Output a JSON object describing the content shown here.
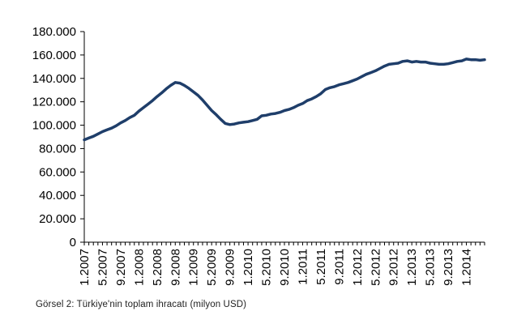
{
  "chart_data": {
    "type": "line",
    "title": "",
    "xlabel": "",
    "ylabel": "",
    "ylim": [
      0,
      180000
    ],
    "grid": false,
    "line_color": "#1f3e6a",
    "y_ticks": [
      "0",
      "20.000",
      "40.000",
      "60.000",
      "80.000",
      "100.000",
      "120.000",
      "140.000",
      "160.000",
      "180.000"
    ],
    "x_tick_labels": [
      "1.2007",
      "5.2007",
      "9.2007",
      "1.2008",
      "5.2008",
      "9.2008",
      "1.2009",
      "5.2009",
      "9.2009",
      "1.2010",
      "5.2010",
      "9.2010",
      "1.2011",
      "5.2011",
      "9.2011",
      "1.2012",
      "5.2012",
      "9.2012",
      "1.2013",
      "5.2013",
      "9.2013",
      "1.2014"
    ],
    "x": [
      "1.2007",
      "2.2007",
      "3.2007",
      "4.2007",
      "5.2007",
      "6.2007",
      "7.2007",
      "8.2007",
      "9.2007",
      "10.2007",
      "11.2007",
      "12.2007",
      "1.2008",
      "2.2008",
      "3.2008",
      "4.2008",
      "5.2008",
      "6.2008",
      "7.2008",
      "8.2008",
      "9.2008",
      "10.2008",
      "11.2008",
      "12.2008",
      "1.2009",
      "2.2009",
      "3.2009",
      "4.2009",
      "5.2009",
      "6.2009",
      "7.2009",
      "8.2009",
      "9.2009",
      "10.2009",
      "11.2009",
      "12.2009",
      "1.2010",
      "2.2010",
      "3.2010",
      "4.2010",
      "5.2010",
      "6.2010",
      "7.2010",
      "8.2010",
      "9.2010",
      "10.2010",
      "11.2010",
      "12.2010",
      "1.2011",
      "2.2011",
      "3.2011",
      "4.2011",
      "5.2011",
      "6.2011",
      "7.2011",
      "8.2011",
      "9.2011",
      "10.2011",
      "11.2011",
      "12.2011",
      "1.2012",
      "2.2012",
      "3.2012",
      "4.2012",
      "5.2012",
      "6.2012",
      "7.2012",
      "8.2012",
      "9.2012",
      "10.2012",
      "11.2012",
      "12.2012",
      "1.2013",
      "2.2013",
      "3.2013",
      "4.2013",
      "5.2013",
      "6.2013",
      "7.2013",
      "8.2013",
      "9.2013",
      "10.2013",
      "11.2013",
      "12.2013",
      "1.2014",
      "2.2014",
      "3.2014",
      "4.2014",
      "5.2014"
    ],
    "series": [
      {
        "name": "",
        "values": [
          87500,
          89000,
          90500,
          92500,
          94500,
          96000,
          97500,
          99500,
          102000,
          104000,
          106500,
          108500,
          112000,
          115000,
          118000,
          121000,
          124500,
          127500,
          131000,
          134000,
          136500,
          136000,
          134000,
          131500,
          128500,
          125500,
          121500,
          117000,
          112500,
          109000,
          105000,
          101500,
          100500,
          101000,
          102000,
          102500,
          103000,
          104000,
          105000,
          108000,
          108500,
          109500,
          110000,
          111000,
          112500,
          113500,
          115000,
          117000,
          118500,
          121000,
          122500,
          124500,
          127000,
          130500,
          132000,
          133000,
          134500,
          135500,
          136500,
          138000,
          139500,
          141500,
          143500,
          145000,
          146500,
          148500,
          150500,
          152000,
          152500,
          153000,
          154500,
          155000,
          154000,
          154500,
          154000,
          154000,
          153000,
          152500,
          152000,
          152000,
          152500,
          153500,
          154500,
          155000,
          156500,
          156000,
          156000,
          155500,
          156000
        ]
      }
    ]
  },
  "caption": "Görsel 2: Türkiye'nin toplam ihracatı (milyon USD)"
}
